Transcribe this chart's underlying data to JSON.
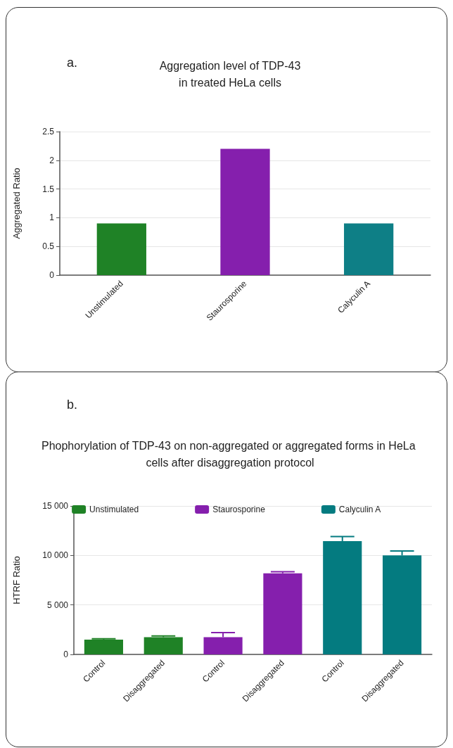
{
  "chart_data": [
    {
      "type": "bar",
      "title": "Aggregation level of TDP-43\nin treated HeLa cells",
      "annotations": [
        "a."
      ],
      "ylabel": "Aggregated Ratio",
      "categories": [
        "Unstimulated",
        "Staurosporine",
        "Calyculin A"
      ],
      "values": [
        0.9,
        2.2,
        0.9
      ],
      "colors": [
        "#1f8226",
        "#851fad",
        "#0e7f86"
      ],
      "ylim": [
        0,
        2.5
      ],
      "yticks": [
        0,
        0.5,
        1,
        1.5,
        2,
        2.5
      ],
      "grid": "y",
      "legend": false
    },
    {
      "type": "bar",
      "title": "Phophorylation of TDP-43 on non-aggregated or aggregated forms in HeLa cells after disaggregation protocol",
      "annotations": [
        "b."
      ],
      "ylabel": "HTRF Ratio",
      "categories": [
        "Control",
        "Disaggregated",
        "Control",
        "Disaggregated",
        "Control",
        "Disaggregated"
      ],
      "series": [
        {
          "name": "Unstimulated",
          "color": "#1f8226",
          "values": [
            1500,
            1750,
            null,
            null,
            null,
            null
          ],
          "errors": [
            [
              1500,
              1580
            ],
            [
              1750,
              1870
            ],
            null,
            null,
            null,
            null
          ]
        },
        {
          "name": "Staurosporine",
          "color": "#851fad",
          "values": [
            null,
            null,
            1750,
            8200,
            null,
            null
          ],
          "errors": [
            null,
            null,
            [
              1750,
              2200
            ],
            [
              8200,
              8350
            ],
            null,
            null
          ]
        },
        {
          "name": "Calyculin A",
          "color": "#047b80",
          "values": [
            null,
            null,
            null,
            null,
            11450,
            10000
          ],
          "errors": [
            null,
            null,
            null,
            null,
            [
              11450,
              11900
            ],
            [
              10000,
              10450
            ]
          ]
        }
      ],
      "ylim": [
        0,
        15000
      ],
      "yticks": [
        {
          "value": 0,
          "label": "0"
        },
        {
          "value": 5000,
          "label": "5 000"
        },
        {
          "value": 10000,
          "label": "10 000"
        },
        {
          "value": 15000,
          "label": "15 000"
        }
      ],
      "grid": "y",
      "legend": "top"
    }
  ]
}
